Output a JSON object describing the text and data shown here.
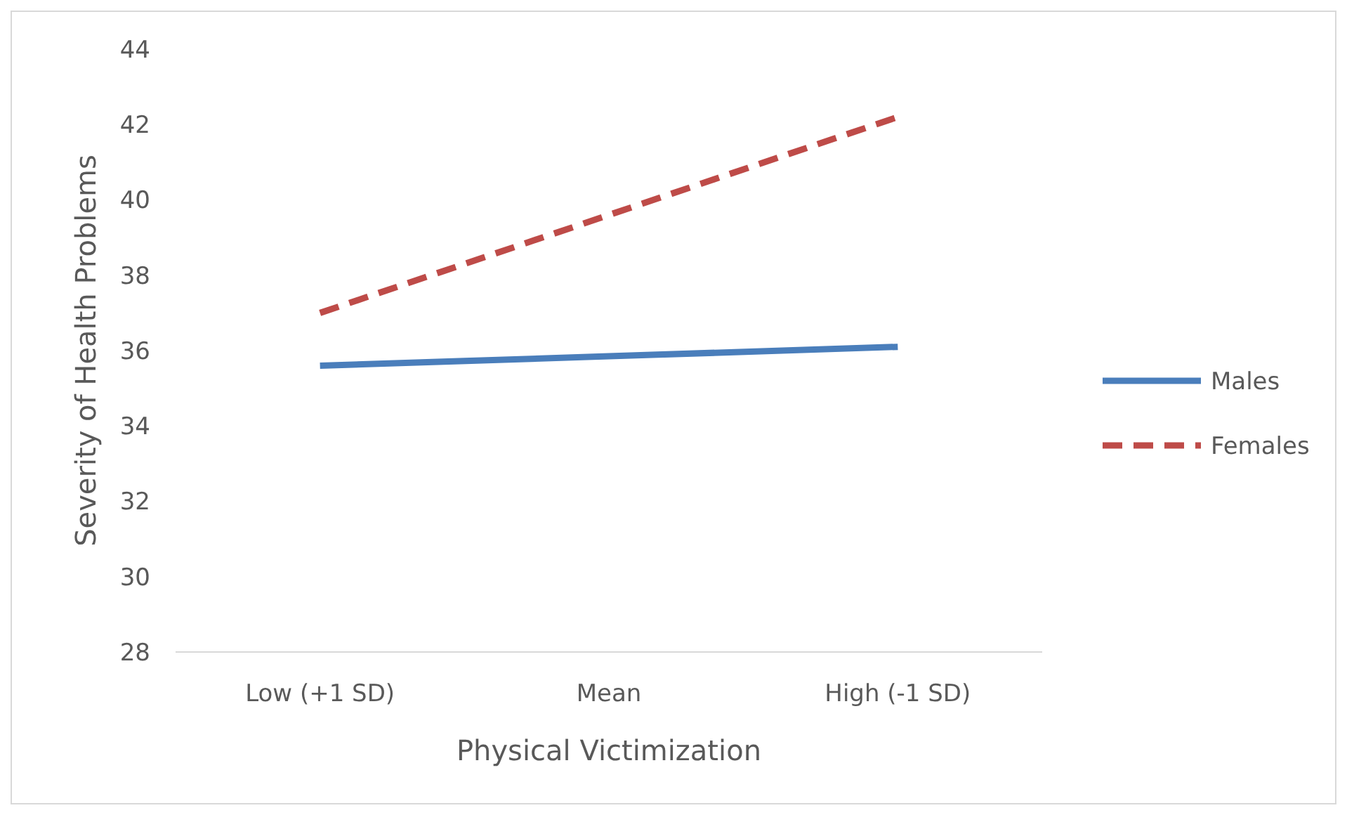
{
  "chart_data": {
    "type": "line",
    "xlabel": "Physical Victimization",
    "ylabel": "Severity of Health Problems",
    "categories": [
      "Low (+1 SD)",
      "Mean",
      "High (-1 SD)"
    ],
    "series": [
      {
        "name": "Males",
        "color": "#4a7ebb",
        "values": [
          35.6,
          35.85,
          36.1
        ],
        "line_style": "solid"
      },
      {
        "name": "Females",
        "color": "#be4b48",
        "values": [
          37.0,
          39.6,
          42.2
        ],
        "line_style": "dashed"
      }
    ],
    "ylim": [
      28,
      44
    ],
    "yticks": [
      28,
      30,
      32,
      34,
      36,
      38,
      40,
      42,
      44
    ],
    "grid": false,
    "legend": "right",
    "marker": "none"
  }
}
